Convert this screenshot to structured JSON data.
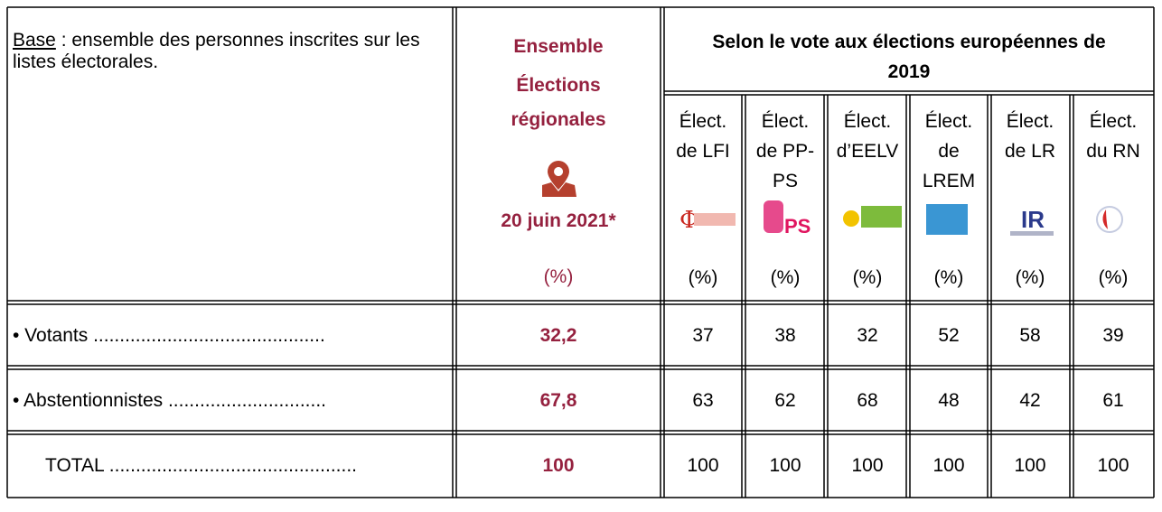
{
  "header": {
    "base_underlined": "Base",
    "base_rest": " : ensemble des personnes inscrites sur les listes électorales.",
    "ensemble": {
      "lines": [
        "Ensemble",
        "Élections",
        "régionales"
      ],
      "date": "20 juin 2021*",
      "unit": "(%)"
    },
    "group": "Selon le vote aux élections européennes de 2019",
    "columns": [
      {
        "lines": [
          "Élect.",
          "de LFI"
        ],
        "unit": "(%)"
      },
      {
        "lines": [
          "Élect.",
          "de PP-",
          "PS"
        ],
        "unit": "(%)"
      },
      {
        "lines": [
          "Élect.",
          "d’EELV"
        ],
        "unit": "(%)"
      },
      {
        "lines": [
          "Élect.",
          "de",
          "LREM"
        ],
        "unit": "(%)"
      },
      {
        "lines": [
          "Élect.",
          "de LR"
        ],
        "unit": "(%)"
      },
      {
        "lines": [
          "Élect.",
          "du RN"
        ],
        "unit": "(%)"
      }
    ]
  },
  "table": {
    "rows": [
      {
        "label": "• Votants ............................................",
        "total": "32,2",
        "values": [
          "37",
          "38",
          "32",
          "52",
          "58",
          "39"
        ]
      },
      {
        "label": "• Abstentionnistes ..............................",
        "total": "67,8",
        "values": [
          "63",
          "62",
          "68",
          "48",
          "42",
          "61"
        ]
      },
      {
        "label": "TOTAL ...............................................",
        "total": "100",
        "values": [
          "100",
          "100",
          "100",
          "100",
          "100",
          "100"
        ]
      }
    ]
  }
}
